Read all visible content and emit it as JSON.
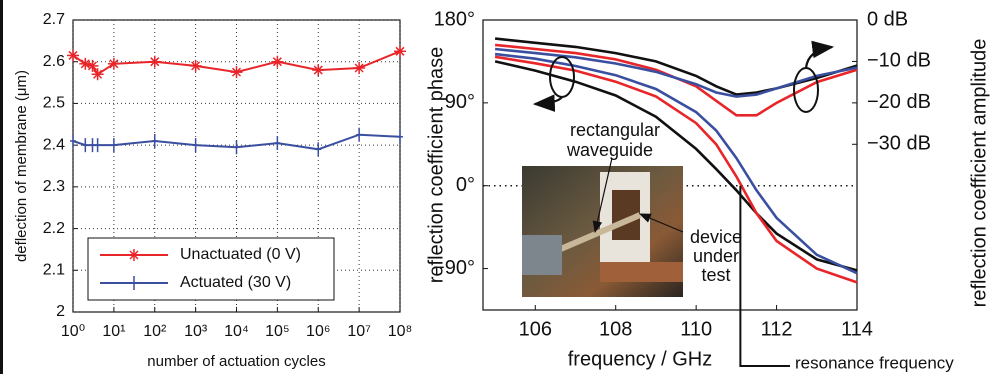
{
  "chart_data": [
    {
      "type": "line",
      "xlabel": "number of actuation cycles",
      "ylabel": "deflection of membrane (μm)",
      "xlog": true,
      "xlim": [
        1,
        100000000
      ],
      "xticks": [
        {
          "value": 1,
          "label": "10⁰"
        },
        {
          "value": 10,
          "label": "10¹"
        },
        {
          "value": 100,
          "label": "10²"
        },
        {
          "value": 1000,
          "label": "10³"
        },
        {
          "value": 10000,
          "label": "10⁴"
        },
        {
          "value": 100000,
          "label": "10⁵"
        },
        {
          "value": 1000000,
          "label": "10⁶"
        },
        {
          "value": 10000000,
          "label": "10⁷"
        },
        {
          "value": 100000000,
          "label": "10⁸"
        }
      ],
      "ylim": [
        2,
        2.7
      ],
      "yticks": [
        2,
        2.1,
        2.2,
        2.3,
        2.4,
        2.5,
        2.6,
        2.7
      ],
      "grid": true,
      "legend": "lower left",
      "x": [
        1,
        2,
        3,
        4,
        10,
        100,
        1000,
        10000,
        100000,
        1000000,
        10000000,
        100000000
      ],
      "series": [
        {
          "name": "Unactuated (0 V)",
          "color": "#e8262a",
          "marker": "asterisk",
          "values": [
            2.615,
            2.595,
            2.59,
            2.57,
            2.595,
            2.6,
            2.59,
            2.575,
            2.6,
            2.58,
            2.585,
            2.625
          ]
        },
        {
          "name": "Actuated (30 V)",
          "color": "#3b4fa0",
          "marker": "plus",
          "values": [
            2.41,
            2.4,
            2.4,
            2.4,
            2.4,
            2.41,
            2.4,
            2.395,
            2.405,
            2.39,
            2.425,
            2.42
          ]
        }
      ]
    },
    {
      "type": "line",
      "xlabel": "frequency / GHz",
      "ylabel": "reflection coefficient phase",
      "y2label": "reflection coefficient amplitude",
      "xlim": [
        104.7,
        114
      ],
      "xticks": [
        106,
        108,
        110,
        112,
        114
      ],
      "ylim": [
        -135,
        180
      ],
      "yticks": [
        {
          "value": 180,
          "label": "180°"
        },
        {
          "value": 90,
          "label": "90°"
        },
        {
          "value": 0,
          "label": "0°"
        },
        {
          "value": -90,
          "label": "−90°"
        }
      ],
      "y2lim": [
        -70,
        0
      ],
      "y2ticks": [
        {
          "value": 0,
          "label": "0 dB"
        },
        {
          "value": -10,
          "label": "−10 dB"
        },
        {
          "value": -20,
          "label": "−20 dB"
        },
        {
          "value": -30,
          "label": "−30 dB"
        }
      ],
      "grid": false,
      "zero_line": true,
      "x": [
        105,
        106,
        107,
        108,
        109,
        110,
        110.5,
        111,
        111.5,
        112,
        113,
        114
      ],
      "series": [
        {
          "color": "#111111",
          "axis": "y2",
          "values": [
            -4.5,
            -5.5,
            -6.5,
            -8,
            -10,
            -13.5,
            -16,
            -18,
            -17.5,
            -16.5,
            -14,
            -11
          ]
        },
        {
          "color": "#e8262a",
          "axis": "y2",
          "values": [
            -6,
            -7,
            -8,
            -9.5,
            -12,
            -16,
            -19.5,
            -23,
            -23,
            -20,
            -15,
            -12
          ]
        },
        {
          "color": "#3b4fa0",
          "axis": "y2",
          "values": [
            -7,
            -8,
            -9,
            -10.5,
            -12.5,
            -15.5,
            -17.5,
            -18.5,
            -18,
            -16.5,
            -13.5,
            -11.5
          ]
        },
        {
          "color": "#111111",
          "values": [
            135,
            125,
            113,
            98,
            75,
            40,
            18,
            -5,
            -30,
            -52,
            -80,
            -92
          ]
        },
        {
          "color": "#3b4fa0",
          "values": [
            143,
            138,
            130,
            120,
            105,
            80,
            60,
            30,
            -5,
            -35,
            -75,
            -95
          ]
        },
        {
          "color": "#e8262a",
          "values": [
            140,
            133,
            125,
            113,
            97,
            68,
            45,
            10,
            -30,
            -60,
            -90,
            -105
          ]
        }
      ],
      "resonance": {
        "x": 111.1,
        "label": "resonance frequency"
      },
      "annotations": [
        "rectangular",
        "waveguide",
        "device",
        "under",
        "test"
      ]
    }
  ]
}
